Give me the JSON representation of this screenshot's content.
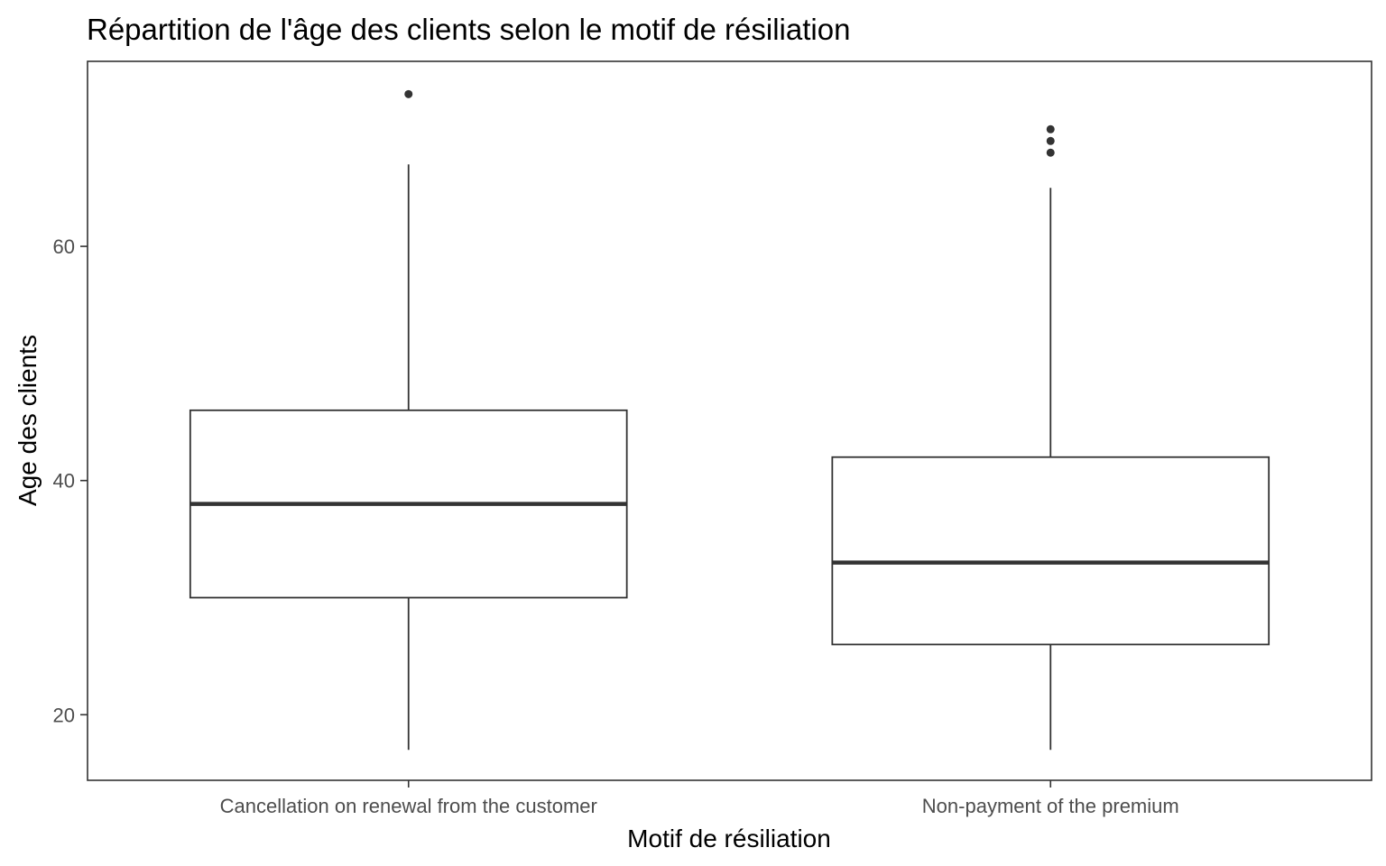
{
  "chart_data": {
    "type": "boxplot",
    "title": "Répartition de l'âge des clients selon le motif de résiliation",
    "xlabel": "Motif de résiliation",
    "ylabel": "Age des clients",
    "categories": [
      "Cancellation on renewal from the customer",
      "Non-payment of the premium"
    ],
    "boxes": [
      {
        "min": 17,
        "q1": 30,
        "median": 38,
        "q3": 46,
        "max": 67,
        "outliers": [
          73
        ]
      },
      {
        "min": 17,
        "q1": 26,
        "median": 33,
        "q3": 42,
        "max": 65,
        "outliers": [
          68,
          69,
          70
        ]
      }
    ],
    "yticks": [
      20,
      40,
      60
    ],
    "ylim": [
      14.4,
      75.8
    ],
    "grid": false,
    "colors": {
      "line": "#333333",
      "box_fill": "#ffffff",
      "tick_label": "#4d4d4d"
    }
  }
}
